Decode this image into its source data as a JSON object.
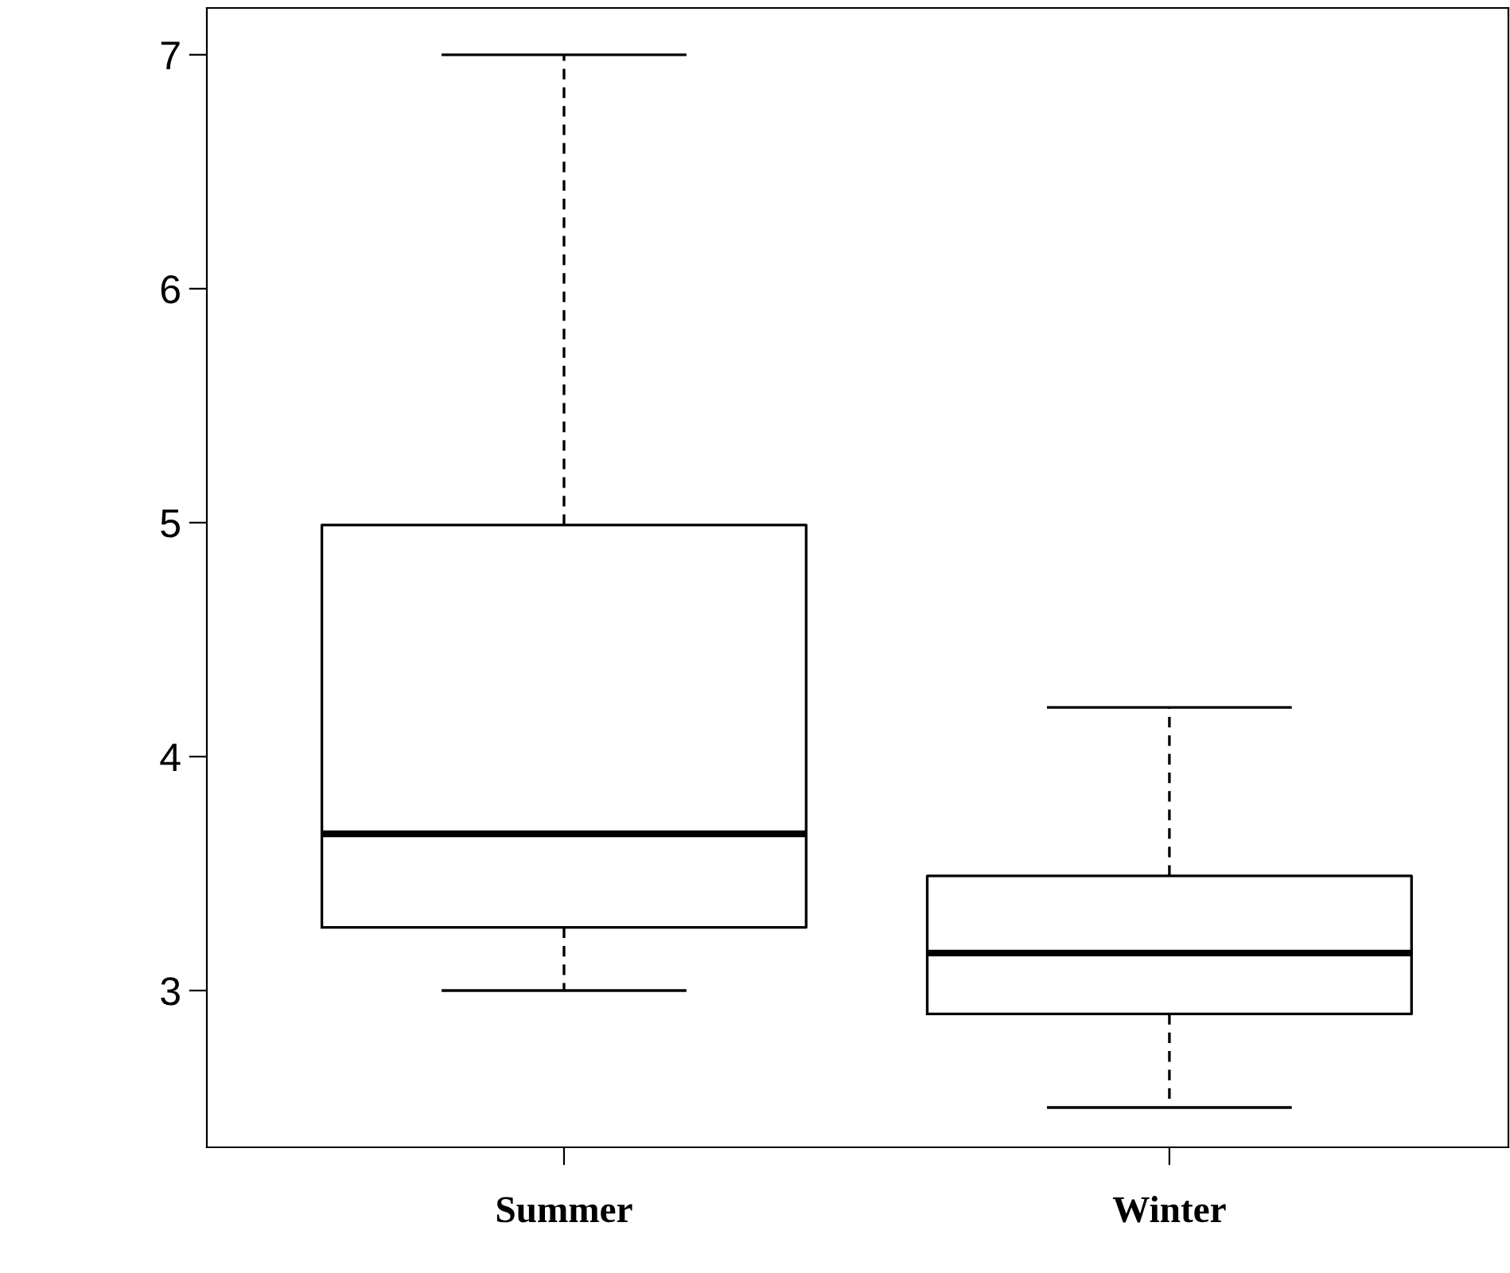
{
  "chart_data": {
    "type": "box",
    "categories": [
      "Summer",
      "Winter"
    ],
    "boxes": [
      {
        "low": 3.0,
        "q1": 3.27,
        "median": 3.67,
        "q3": 4.99,
        "high": 7.0
      },
      {
        "low": 2.5,
        "q1": 2.9,
        "median": 3.16,
        "q3": 3.49,
        "high": 4.21
      }
    ],
    "color": "#000000",
    "ylim": [
      2.33,
      7.2
    ],
    "yticks": [
      3,
      4,
      5,
      6,
      7
    ],
    "grid": false,
    "legend": false
  }
}
